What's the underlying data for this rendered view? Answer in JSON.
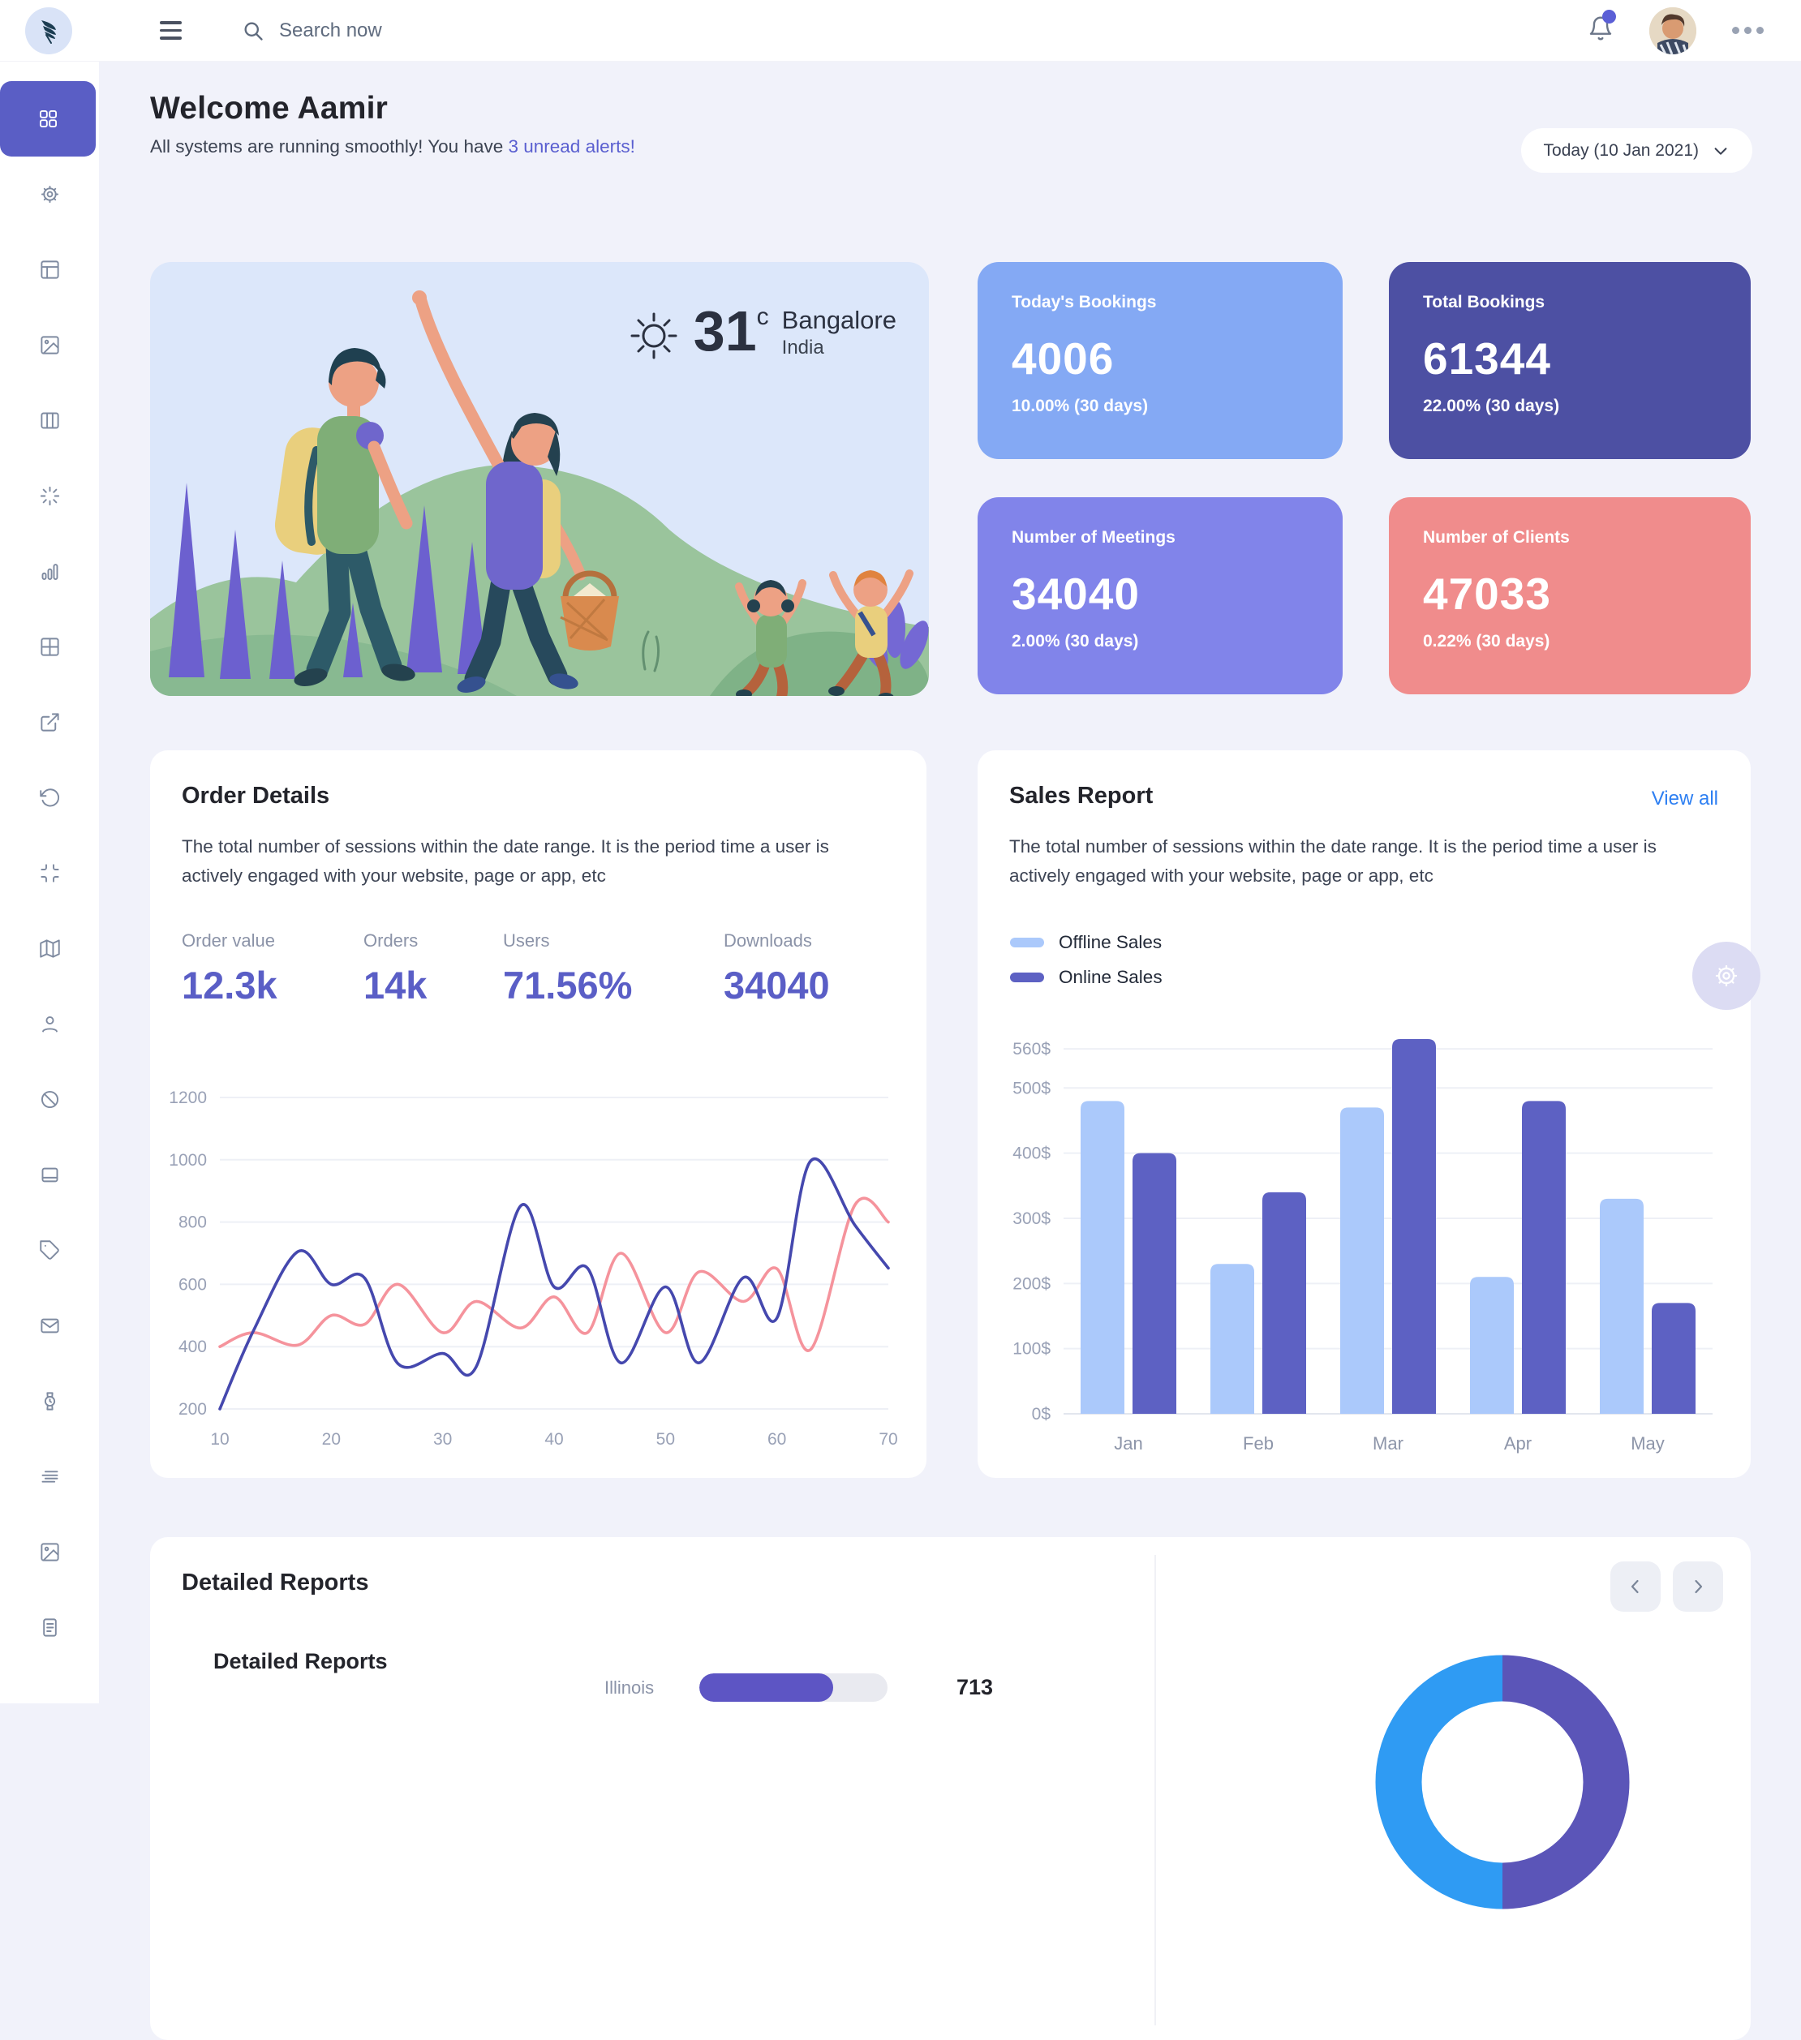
{
  "topbar": {
    "search_placeholder": "Search now"
  },
  "sidebar": {
    "items": [
      {
        "name": "dashboard",
        "active": true
      },
      {
        "name": "settings",
        "active": false
      },
      {
        "name": "layout",
        "active": false
      },
      {
        "name": "image",
        "active": false
      },
      {
        "name": "columns",
        "active": false
      },
      {
        "name": "loader",
        "active": false
      },
      {
        "name": "chart-bar",
        "active": false
      },
      {
        "name": "table",
        "active": false
      },
      {
        "name": "external-link",
        "active": false
      },
      {
        "name": "history",
        "active": false
      },
      {
        "name": "minimize",
        "active": false
      },
      {
        "name": "map",
        "active": false
      },
      {
        "name": "user",
        "active": false
      },
      {
        "name": "ban",
        "active": false
      },
      {
        "name": "laptop",
        "active": false
      },
      {
        "name": "tag",
        "active": false
      },
      {
        "name": "mail",
        "active": false
      },
      {
        "name": "watch",
        "active": false
      },
      {
        "name": "align-lines",
        "active": false
      },
      {
        "name": "image-alt",
        "active": false
      },
      {
        "name": "file-text",
        "active": false
      }
    ]
  },
  "header": {
    "title": "Welcome Aamir",
    "subtitle_prefix": "All systems are running smoothly! You have ",
    "subtitle_link": "3 unread alerts!",
    "date_label": "Today (10 Jan 2021)"
  },
  "weather": {
    "temp": "31",
    "unit": "c",
    "city": "Bangalore",
    "country": "India"
  },
  "stat_cards": [
    {
      "title": "Today's Bookings",
      "value": "4006",
      "delta": "10.00% (30 days)",
      "color": "#84a9f4"
    },
    {
      "title": "Total Bookings",
      "value": "61344",
      "delta": "22.00% (30 days)",
      "color": "#4d50a3"
    },
    {
      "title": "Number of Meetings",
      "value": "34040",
      "delta": "2.00% (30 days)",
      "color": "#8184ea"
    },
    {
      "title": "Number of Clients",
      "value": "47033",
      "delta": "0.22% (30 days)",
      "color": "#f08c8c"
    }
  ],
  "order_details": {
    "title": "Order Details",
    "description": "The total number of sessions within the date range. It is the period time a user is actively engaged with your website, page or app, etc",
    "metrics": [
      {
        "label": "Order value",
        "value": "12.3k"
      },
      {
        "label": "Orders",
        "value": "14k"
      },
      {
        "label": "Users",
        "value": "71.56%"
      },
      {
        "label": "Downloads",
        "value": "34040"
      }
    ]
  },
  "sales_report": {
    "title": "Sales Report",
    "view_all": "View all",
    "description": "The total number of sessions within the date range. It is the period time a user is actively engaged with your website, page or app, etc",
    "legend": [
      {
        "label": "Offline Sales",
        "color": "#abc9fb"
      },
      {
        "label": "Online Sales",
        "color": "#5d61c3"
      }
    ]
  },
  "detailed_reports": {
    "title": "Detailed Reports",
    "inner_title": "Detailed Reports",
    "rows": [
      {
        "label": "Illinois",
        "value": 713,
        "max": 1000,
        "bar_color": "#5d55c4"
      }
    ]
  },
  "chart_data": [
    {
      "id": "order-line",
      "type": "line",
      "x": [
        10,
        13,
        17,
        20,
        23,
        26,
        30,
        33,
        37,
        40,
        43,
        46,
        50,
        53,
        57,
        60,
        63,
        67,
        70
      ],
      "series": [
        {
          "name": "online",
          "color": "#4548ae",
          "values": [
            200,
            450,
            705,
            600,
            620,
            345,
            378,
            335,
            852,
            592,
            652,
            348,
            592,
            348,
            622,
            492,
            995,
            790,
            652
          ]
        },
        {
          "name": "offline",
          "color": "#f5939c",
          "values": [
            400,
            445,
            405,
            500,
            472,
            600,
            445,
            545,
            460,
            560,
            445,
            700,
            445,
            640,
            545,
            650,
            390,
            855,
            800
          ]
        }
      ],
      "xticks": [
        10,
        20,
        30,
        40,
        50,
        60,
        70
      ],
      "yticks": [
        200,
        400,
        600,
        800,
        1000,
        1200
      ],
      "xlim": [
        10,
        70
      ],
      "ylim": [
        200,
        1200
      ],
      "grid": true,
      "legend_position": "none"
    },
    {
      "id": "sales-bar",
      "type": "bar",
      "categories": [
        "Jan",
        "Feb",
        "Mar",
        "Apr",
        "May"
      ],
      "series": [
        {
          "name": "Offline Sales",
          "color": "#abc9fb",
          "values": [
            480,
            230,
            470,
            210,
            330
          ]
        },
        {
          "name": "Online Sales",
          "color": "#5d61c3",
          "values": [
            400,
            340,
            575,
            480,
            170
          ]
        }
      ],
      "yticks": [
        0,
        100,
        200,
        300,
        400,
        500,
        560
      ],
      "ytick_suffix": "$",
      "ylim": [
        0,
        585
      ],
      "grid": true,
      "legend_position": "top-left"
    },
    {
      "id": "regions-donut",
      "type": "donut",
      "segments": [
        {
          "name": "segment-blue",
          "color": "#2f9bf3",
          "value": 50
        },
        {
          "name": "segment-purple",
          "color": "#5b55b8",
          "value": 50
        }
      ]
    }
  ]
}
